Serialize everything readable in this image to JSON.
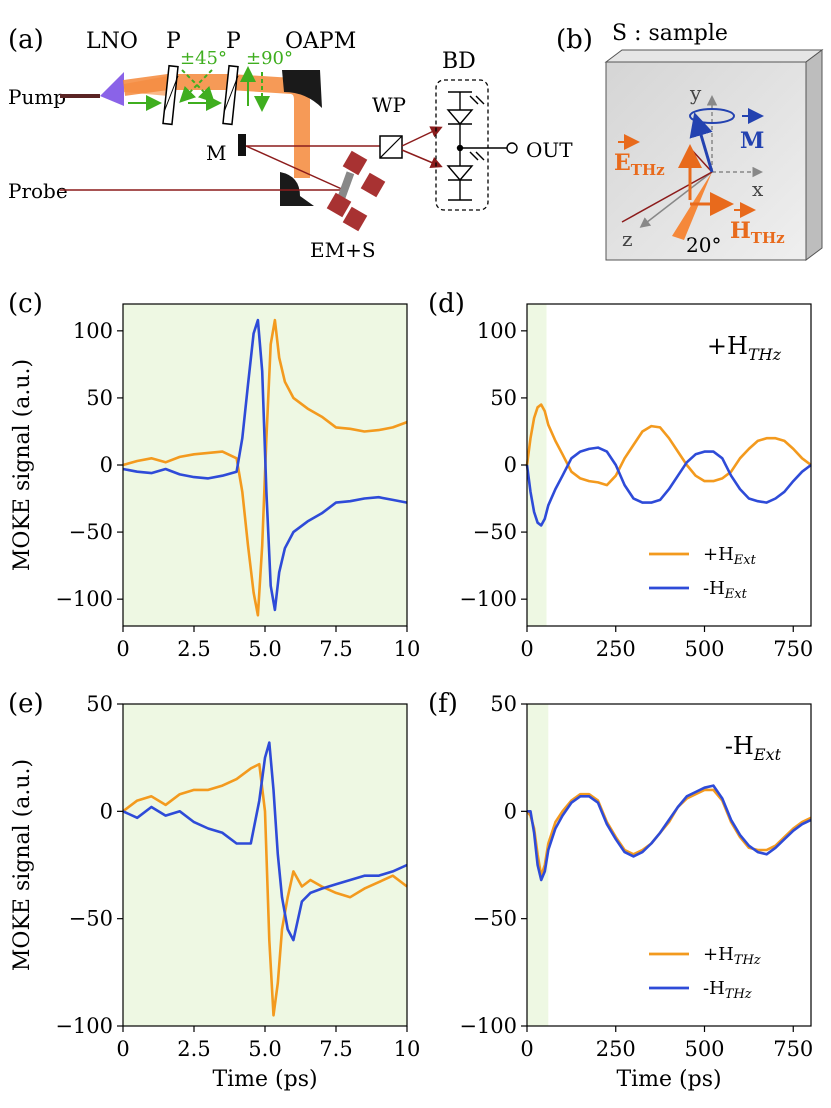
{
  "panel_letters": {
    "a": "(a)",
    "b": "(b)",
    "c": "(c)",
    "d": "(d)",
    "e": "(e)",
    "f": "(f)"
  },
  "setup": {
    "labels": {
      "lno": "LNO",
      "p1": "P",
      "p2": "P",
      "oapm": "OAPM",
      "bd": "BD",
      "pump": "Pump",
      "probe": "Probe",
      "m": "M",
      "wp": "WP",
      "out": "OUT",
      "emS": "EM+S",
      "pol1": "±45°",
      "pol2": "±90°"
    }
  },
  "sample": {
    "title": "S : sample",
    "axis_y": "y",
    "axis_x": "x",
    "axis_z": "z",
    "m_vec": "M",
    "e_main": "E",
    "e_sub": "THz",
    "h_main": "H",
    "h_sub": "THz",
    "angle": "20°"
  },
  "colors": {
    "orange": "#f39a1e",
    "blue": "#2e4bd8",
    "green_bg": "#eef8e3",
    "pump_beam": "#f5883a",
    "probe_line": "#8c1c1c",
    "green_arrow": "#3fae1f"
  },
  "chart_data": [
    {
      "id": "c",
      "type": "line",
      "ylabel": "MOKE signal (a.u.)",
      "xlabel": "",
      "xlim": [
        0,
        10
      ],
      "ylim": [
        -120,
        120
      ],
      "xticks": [
        0,
        2.5,
        5,
        7.5,
        10
      ],
      "xtick_labels": [
        "0",
        "2.5",
        "5.0",
        "7.5",
        "10"
      ],
      "yticks": [
        100,
        50,
        0,
        -50,
        -100
      ],
      "ytick_labels": [
        "100",
        "50",
        "0",
        "−50",
        "−100"
      ],
      "shade": [
        0,
        10
      ],
      "series": [
        {
          "name": "+H_Ext",
          "color": "orange",
          "x": [
            0,
            0.5,
            1,
            1.5,
            2,
            2.5,
            3,
            3.5,
            4,
            4.2,
            4.4,
            4.6,
            4.75,
            4.9,
            5.05,
            5.2,
            5.35,
            5.5,
            5.7,
            6,
            6.5,
            7,
            7.5,
            8,
            8.5,
            9,
            9.5,
            10
          ],
          "y": [
            0,
            3,
            5,
            2,
            6,
            8,
            9,
            10,
            5,
            -20,
            -60,
            -95,
            -112,
            -60,
            20,
            90,
            108,
            80,
            62,
            50,
            42,
            36,
            28,
            27,
            25,
            26,
            28,
            32
          ]
        },
        {
          "name": "-H_Ext",
          "color": "blue",
          "x": [
            0,
            0.5,
            1,
            1.5,
            2,
            2.5,
            3,
            3.5,
            4,
            4.2,
            4.4,
            4.6,
            4.75,
            4.9,
            5.05,
            5.2,
            5.35,
            5.5,
            5.7,
            6,
            6.5,
            7,
            7.5,
            8,
            8.5,
            9,
            9.5,
            10
          ],
          "y": [
            -3,
            -5,
            -6,
            -3,
            -7,
            -9,
            -10,
            -8,
            -5,
            20,
            60,
            98,
            108,
            70,
            -20,
            -90,
            -108,
            -80,
            -62,
            -50,
            -42,
            -36,
            -28,
            -27,
            -25,
            -24,
            -26,
            -28
          ]
        }
      ]
    },
    {
      "id": "d",
      "type": "line",
      "ylabel": "",
      "xlabel": "",
      "xlim": [
        0,
        800
      ],
      "ylim": [
        -120,
        120
      ],
      "xticks": [
        0,
        250,
        500,
        750
      ],
      "xtick_labels": [
        "0",
        "250",
        "500",
        "750"
      ],
      "yticks": [
        100,
        50,
        0,
        -50,
        -100
      ],
      "ytick_labels": [
        "100",
        "50",
        "0",
        "−50",
        "−100"
      ],
      "shade": [
        0,
        55
      ],
      "annotation_main": "+H",
      "annotation_sub": "THz",
      "legend": [
        {
          "main": "+H",
          "sub": "Ext",
          "color": "orange"
        },
        {
          "main": "-H",
          "sub": "Ext",
          "color": "blue"
        }
      ],
      "series": [
        {
          "name": "+H_Ext",
          "color": "orange",
          "x": [
            0,
            10,
            20,
            30,
            40,
            50,
            60,
            80,
            100,
            125,
            150,
            175,
            200,
            225,
            250,
            275,
            300,
            325,
            350,
            375,
            400,
            425,
            450,
            475,
            500,
            525,
            550,
            575,
            600,
            625,
            650,
            675,
            700,
            725,
            750,
            775,
            800
          ],
          "y": [
            0,
            20,
            35,
            43,
            45,
            40,
            30,
            18,
            8,
            -5,
            -10,
            -12,
            -13,
            -15,
            -8,
            5,
            15,
            25,
            29,
            28,
            20,
            10,
            0,
            -8,
            -12,
            -12,
            -10,
            -5,
            5,
            12,
            18,
            20,
            20,
            18,
            12,
            5,
            0
          ]
        },
        {
          "name": "-H_Ext",
          "color": "blue",
          "x": [
            0,
            10,
            20,
            30,
            40,
            50,
            60,
            80,
            100,
            125,
            150,
            175,
            200,
            225,
            250,
            275,
            300,
            325,
            350,
            375,
            400,
            425,
            450,
            475,
            500,
            525,
            550,
            575,
            600,
            625,
            650,
            675,
            700,
            725,
            750,
            775,
            800
          ],
          "y": [
            0,
            -20,
            -35,
            -43,
            -45,
            -40,
            -30,
            -18,
            -8,
            5,
            10,
            12,
            13,
            10,
            0,
            -15,
            -25,
            -28,
            -28,
            -26,
            -18,
            -8,
            2,
            8,
            10,
            10,
            5,
            -8,
            -18,
            -25,
            -27,
            -28,
            -25,
            -20,
            -12,
            -5,
            0
          ]
        }
      ]
    },
    {
      "id": "e",
      "type": "line",
      "ylabel": "MOKE signal (a.u.)",
      "xlabel": "Time (ps)",
      "xlim": [
        0,
        10
      ],
      "ylim": [
        -100,
        50
      ],
      "xticks": [
        0,
        2.5,
        5,
        7.5,
        10
      ],
      "xtick_labels": [
        "0",
        "2.5",
        "5.0",
        "7.5",
        "10"
      ],
      "yticks": [
        50,
        0,
        -50,
        -100
      ],
      "ytick_labels": [
        "50",
        "0",
        "−50",
        "−100"
      ],
      "shade": [
        0,
        10
      ],
      "series": [
        {
          "name": "+H_THz",
          "color": "orange",
          "x": [
            0,
            0.5,
            1,
            1.5,
            2,
            2.5,
            3,
            3.5,
            4,
            4.5,
            4.8,
            5.0,
            5.15,
            5.3,
            5.45,
            5.6,
            5.8,
            6.0,
            6.3,
            6.6,
            7,
            7.5,
            8,
            8.5,
            9,
            9.5,
            10
          ],
          "y": [
            0,
            5,
            7,
            3,
            8,
            10,
            10,
            12,
            15,
            20,
            22,
            0,
            -60,
            -95,
            -80,
            -55,
            -40,
            -28,
            -35,
            -32,
            -35,
            -38,
            -40,
            -36,
            -33,
            -30,
            -35
          ]
        },
        {
          "name": "-H_THz",
          "color": "blue",
          "x": [
            0,
            0.5,
            1,
            1.5,
            2,
            2.5,
            3,
            3.5,
            4,
            4.5,
            4.8,
            5.0,
            5.15,
            5.3,
            5.45,
            5.6,
            5.8,
            6.0,
            6.3,
            6.6,
            7,
            7.5,
            8,
            8.5,
            9,
            9.5,
            10
          ],
          "y": [
            0,
            -3,
            2,
            -2,
            0,
            -5,
            -8,
            -10,
            -15,
            -15,
            5,
            25,
            32,
            10,
            -20,
            -40,
            -55,
            -60,
            -42,
            -38,
            -36,
            -34,
            -32,
            -30,
            -30,
            -28,
            -25
          ]
        }
      ]
    },
    {
      "id": "f",
      "type": "line",
      "ylabel": "",
      "xlabel": "Time (ps)",
      "xlim": [
        0,
        800
      ],
      "ylim": [
        -100,
        50
      ],
      "xticks": [
        0,
        250,
        500,
        750
      ],
      "xtick_labels": [
        "0",
        "250",
        "500",
        "750"
      ],
      "yticks": [
        50,
        0,
        -50,
        -100
      ],
      "ytick_labels": [
        "50",
        "0",
        "−50",
        "−100"
      ],
      "shade": [
        0,
        60
      ],
      "annotation_main": "-H",
      "annotation_sub": "Ext",
      "legend": [
        {
          "main": "+H",
          "sub": "THz",
          "color": "orange"
        },
        {
          "main": "-H",
          "sub": "THz",
          "color": "blue"
        }
      ],
      "series": [
        {
          "name": "+H_THz",
          "color": "orange",
          "x": [
            0,
            10,
            20,
            30,
            40,
            50,
            60,
            80,
            100,
            125,
            150,
            175,
            200,
            225,
            250,
            275,
            300,
            325,
            350,
            375,
            400,
            425,
            450,
            475,
            500,
            525,
            550,
            575,
            600,
            625,
            650,
            675,
            700,
            725,
            750,
            775,
            800
          ],
          "y": [
            0,
            -2,
            -8,
            -20,
            -30,
            -25,
            -15,
            -5,
            0,
            5,
            8,
            8,
            5,
            -5,
            -12,
            -18,
            -20,
            -18,
            -15,
            -10,
            -5,
            2,
            6,
            8,
            10,
            10,
            5,
            -5,
            -12,
            -17,
            -18,
            -18,
            -16,
            -12,
            -8,
            -5,
            -3
          ]
        },
        {
          "name": "-H_THz",
          "color": "blue",
          "x": [
            0,
            10,
            20,
            30,
            40,
            50,
            60,
            80,
            100,
            125,
            150,
            175,
            200,
            225,
            250,
            275,
            300,
            325,
            350,
            375,
            400,
            425,
            450,
            475,
            500,
            525,
            550,
            575,
            600,
            625,
            650,
            675,
            700,
            725,
            750,
            775,
            800
          ],
          "y": [
            0,
            0,
            -10,
            -25,
            -32,
            -28,
            -18,
            -8,
            -2,
            4,
            7,
            7,
            4,
            -6,
            -13,
            -19,
            -21,
            -19,
            -15,
            -10,
            -4,
            2,
            7,
            9,
            11,
            12,
            6,
            -4,
            -11,
            -16,
            -19,
            -20,
            -17,
            -13,
            -9,
            -6,
            -4
          ]
        }
      ]
    }
  ]
}
